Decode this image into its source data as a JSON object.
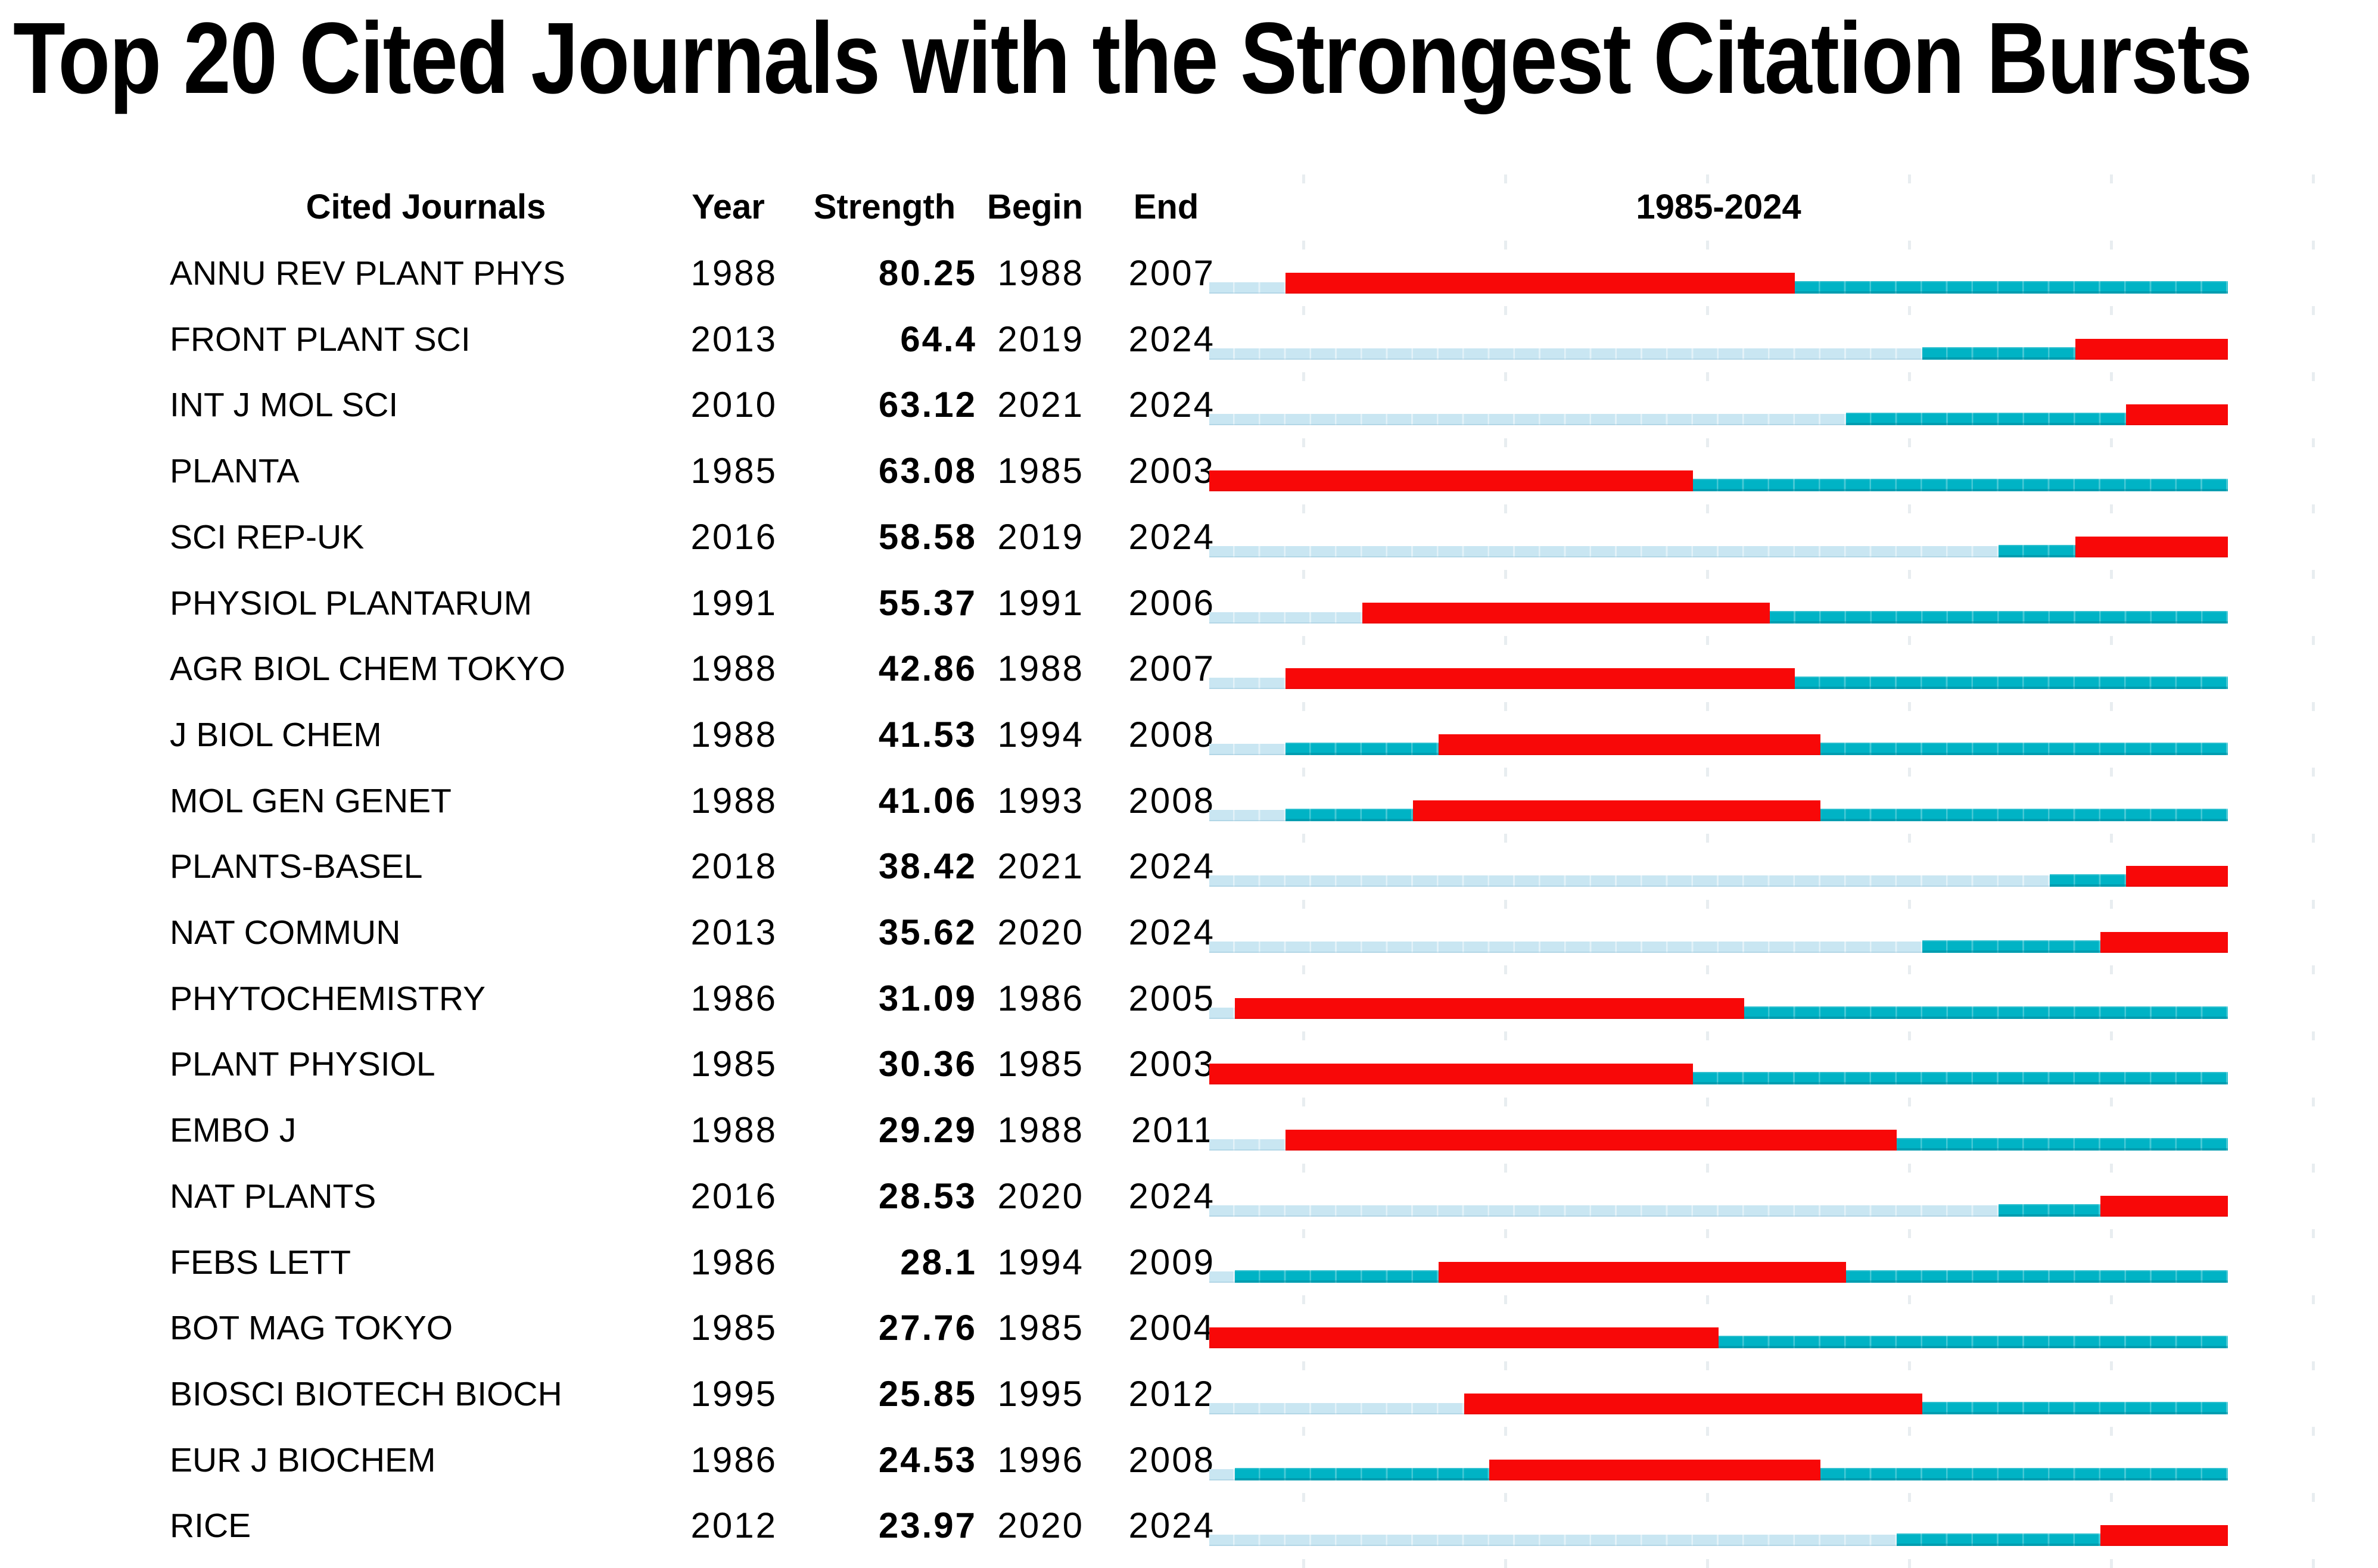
{
  "chart_data": {
    "type": "table",
    "title": "Top 20 Cited Journals with the Strongest Citation Bursts",
    "columns": [
      "Cited Journals",
      "Year",
      "Strength",
      "Begin",
      "End"
    ],
    "timeline_header": "1985-2024",
    "timeline": {
      "start_year": 1985,
      "end_year": 2024
    },
    "layout": {
      "legend_position": "none",
      "grid": "faint year-slice tick marks between rows",
      "bar_meaning": {
        "pale_segment": "years before journal first cited",
        "teal_segment": "years cited without burst",
        "red_segment": "citation burst period (Begin to End)"
      }
    },
    "colors": {
      "burst_red": "#F80808",
      "active_teal": "#00B3C5",
      "pre_pale_blue": "#C9E6F2",
      "text": "#000000",
      "background": "#FFFFFF"
    },
    "rows": [
      {
        "journal": "ANNU REV PLANT PHYS",
        "year": 1988,
        "strength": "80.25",
        "begin": 1988,
        "end": 2007
      },
      {
        "journal": "FRONT PLANT SCI",
        "year": 2013,
        "strength": "64.4",
        "begin": 2019,
        "end": 2024
      },
      {
        "journal": "INT J MOL SCI",
        "year": 2010,
        "strength": "63.12",
        "begin": 2021,
        "end": 2024
      },
      {
        "journal": "PLANTA",
        "year": 1985,
        "strength": "63.08",
        "begin": 1985,
        "end": 2003
      },
      {
        "journal": "SCI REP-UK",
        "year": 2016,
        "strength": "58.58",
        "begin": 2019,
        "end": 2024
      },
      {
        "journal": "PHYSIOL PLANTARUM",
        "year": 1991,
        "strength": "55.37",
        "begin": 1991,
        "end": 2006
      },
      {
        "journal": "AGR BIOL CHEM TOKYO",
        "year": 1988,
        "strength": "42.86",
        "begin": 1988,
        "end": 2007
      },
      {
        "journal": "J BIOL CHEM",
        "year": 1988,
        "strength": "41.53",
        "begin": 1994,
        "end": 2008
      },
      {
        "journal": "MOL GEN GENET",
        "year": 1988,
        "strength": "41.06",
        "begin": 1993,
        "end": 2008
      },
      {
        "journal": "PLANTS-BASEL",
        "year": 2018,
        "strength": "38.42",
        "begin": 2021,
        "end": 2024
      },
      {
        "journal": "NAT COMMUN",
        "year": 2013,
        "strength": "35.62",
        "begin": 2020,
        "end": 2024
      },
      {
        "journal": "PHYTOCHEMISTRY",
        "year": 1986,
        "strength": "31.09",
        "begin": 1986,
        "end": 2005
      },
      {
        "journal": "PLANT PHYSIOL",
        "year": 1985,
        "strength": "30.36",
        "begin": 1985,
        "end": 2003
      },
      {
        "journal": "EMBO J",
        "year": 1988,
        "strength": "29.29",
        "begin": 1988,
        "end": 2011
      },
      {
        "journal": "NAT PLANTS",
        "year": 2016,
        "strength": "28.53",
        "begin": 2020,
        "end": 2024
      },
      {
        "journal": "FEBS LETT",
        "year": 1986,
        "strength": "28.1",
        "begin": 1994,
        "end": 2009
      },
      {
        "journal": "BOT MAG TOKYO",
        "year": 1985,
        "strength": "27.76",
        "begin": 1985,
        "end": 2004
      },
      {
        "journal": "BIOSCI BIOTECH BIOCH",
        "year": 1995,
        "strength": "25.85",
        "begin": 1995,
        "end": 2012
      },
      {
        "journal": "EUR J BIOCHEM",
        "year": 1986,
        "strength": "24.53",
        "begin": 1996,
        "end": 2008
      },
      {
        "journal": "RICE",
        "year": 2012,
        "strength": "23.97",
        "begin": 2020,
        "end": 2024
      }
    ]
  }
}
